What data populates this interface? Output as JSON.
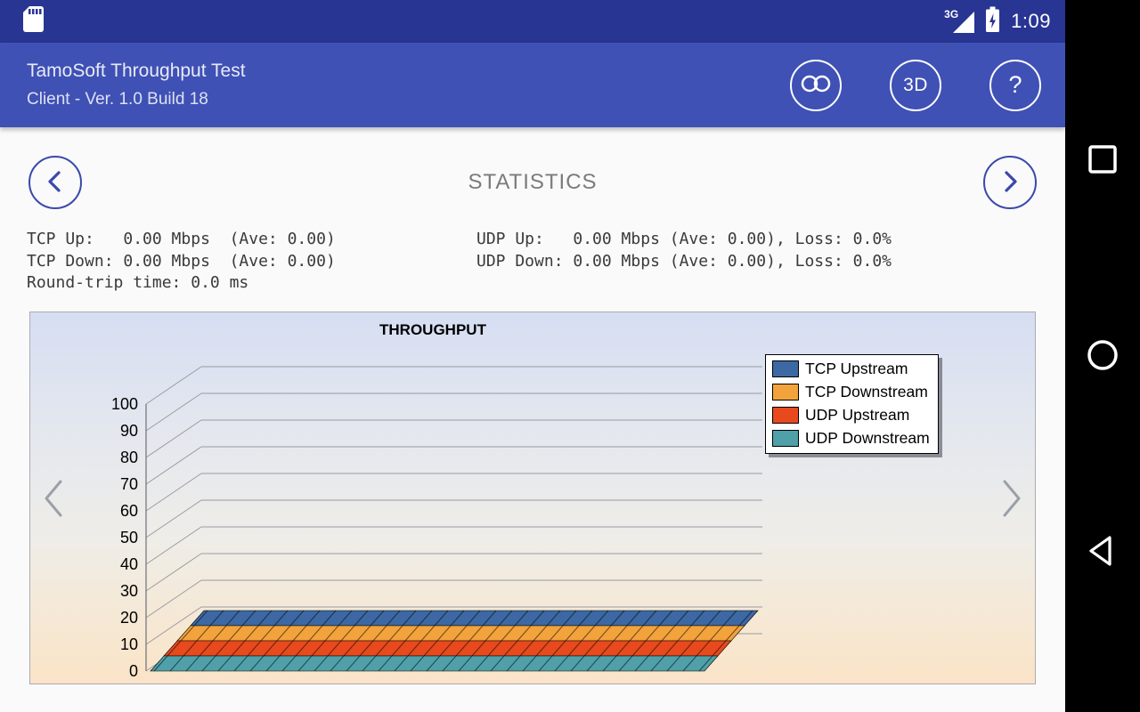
{
  "theme": {
    "status_bar_color": "#283593",
    "app_bar_color": "#3F51B5",
    "accent_blue": "#3949AB",
    "content_bg": "#FAFAFA",
    "nav_bar_color": "#000000"
  },
  "status_bar": {
    "time": "1:09",
    "network_type": "3G",
    "icons": [
      "sd-card-icon",
      "signal-icon",
      "battery-charging-icon"
    ]
  },
  "app_bar": {
    "title": "TamoSoft Throughput Test",
    "subtitle": "Client - Ver. 1.0 Build 18",
    "actions": [
      {
        "id": "connect",
        "icon": "link-icon",
        "label": ""
      },
      {
        "id": "view-3d",
        "label": "3D"
      },
      {
        "id": "help",
        "label": "?"
      }
    ]
  },
  "page": {
    "title": "STATISTICS"
  },
  "statistics": {
    "left_lines": [
      "TCP Up:   0.00 Mbps  (Ave: 0.00)",
      "TCP Down: 0.00 Mbps  (Ave: 0.00)",
      "Round-trip time: 0.0 ms"
    ],
    "right_lines": [
      "UDP Up:   0.00 Mbps (Ave: 0.00), Loss: 0.0%",
      "UDP Down: 0.00 Mbps (Ave: 0.00), Loss: 0.0%"
    ]
  },
  "chart_data": {
    "type": "area",
    "projection": "3d",
    "title": "THROUGHPUT",
    "xlabel": "",
    "ylabel": "",
    "ylim": [
      0,
      100
    ],
    "yticks": [
      0,
      10,
      20,
      30,
      40,
      50,
      60,
      70,
      80,
      90,
      100
    ],
    "grid": true,
    "legend_position": "top-right",
    "series": [
      {
        "name": "TCP Upstream",
        "color": "#3C68A4",
        "values": [
          0,
          0,
          0,
          0,
          0,
          0,
          0,
          0,
          0,
          0
        ]
      },
      {
        "name": "TCP Downstream",
        "color": "#F2A33C",
        "values": [
          0,
          0,
          0,
          0,
          0,
          0,
          0,
          0,
          0,
          0
        ]
      },
      {
        "name": "UDP Upstream",
        "color": "#E8491D",
        "values": [
          0,
          0,
          0,
          0,
          0,
          0,
          0,
          0,
          0,
          0
        ]
      },
      {
        "name": "UDP Downstream",
        "color": "#4FA0A8",
        "values": [
          0,
          0,
          0,
          0,
          0,
          0,
          0,
          0,
          0,
          0
        ]
      }
    ]
  }
}
